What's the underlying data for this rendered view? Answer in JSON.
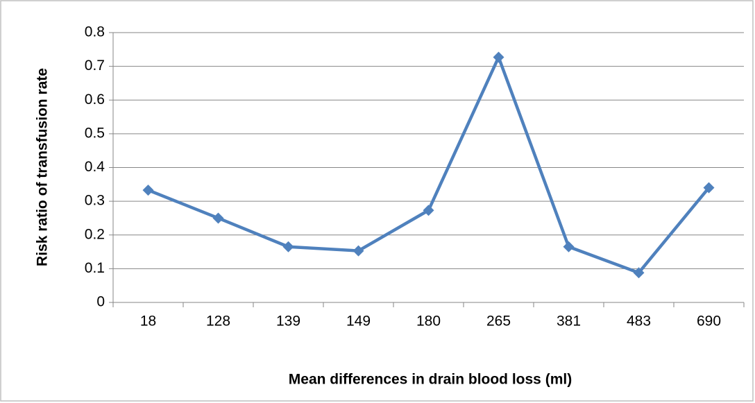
{
  "chart_data": {
    "type": "line",
    "x_label": "Mean differences  in drain blood loss (ml)",
    "y_label": "Risk ratio of transfusion  rate",
    "categories": [
      "18",
      "128",
      "139",
      "149",
      "180",
      "265",
      "381",
      "483",
      "690"
    ],
    "series": [
      {
        "color": "#4f81bd",
        "values": [
          0.333,
          0.25,
          0.165,
          0.153,
          0.273,
          0.727,
          0.165,
          0.088,
          0.34
        ]
      }
    ],
    "ylim": [
      0,
      0.8
    ],
    "yticks": [
      0,
      0.1,
      0.2,
      0.3,
      0.4,
      0.5,
      0.6,
      0.7,
      0.8
    ],
    "grid": true
  }
}
